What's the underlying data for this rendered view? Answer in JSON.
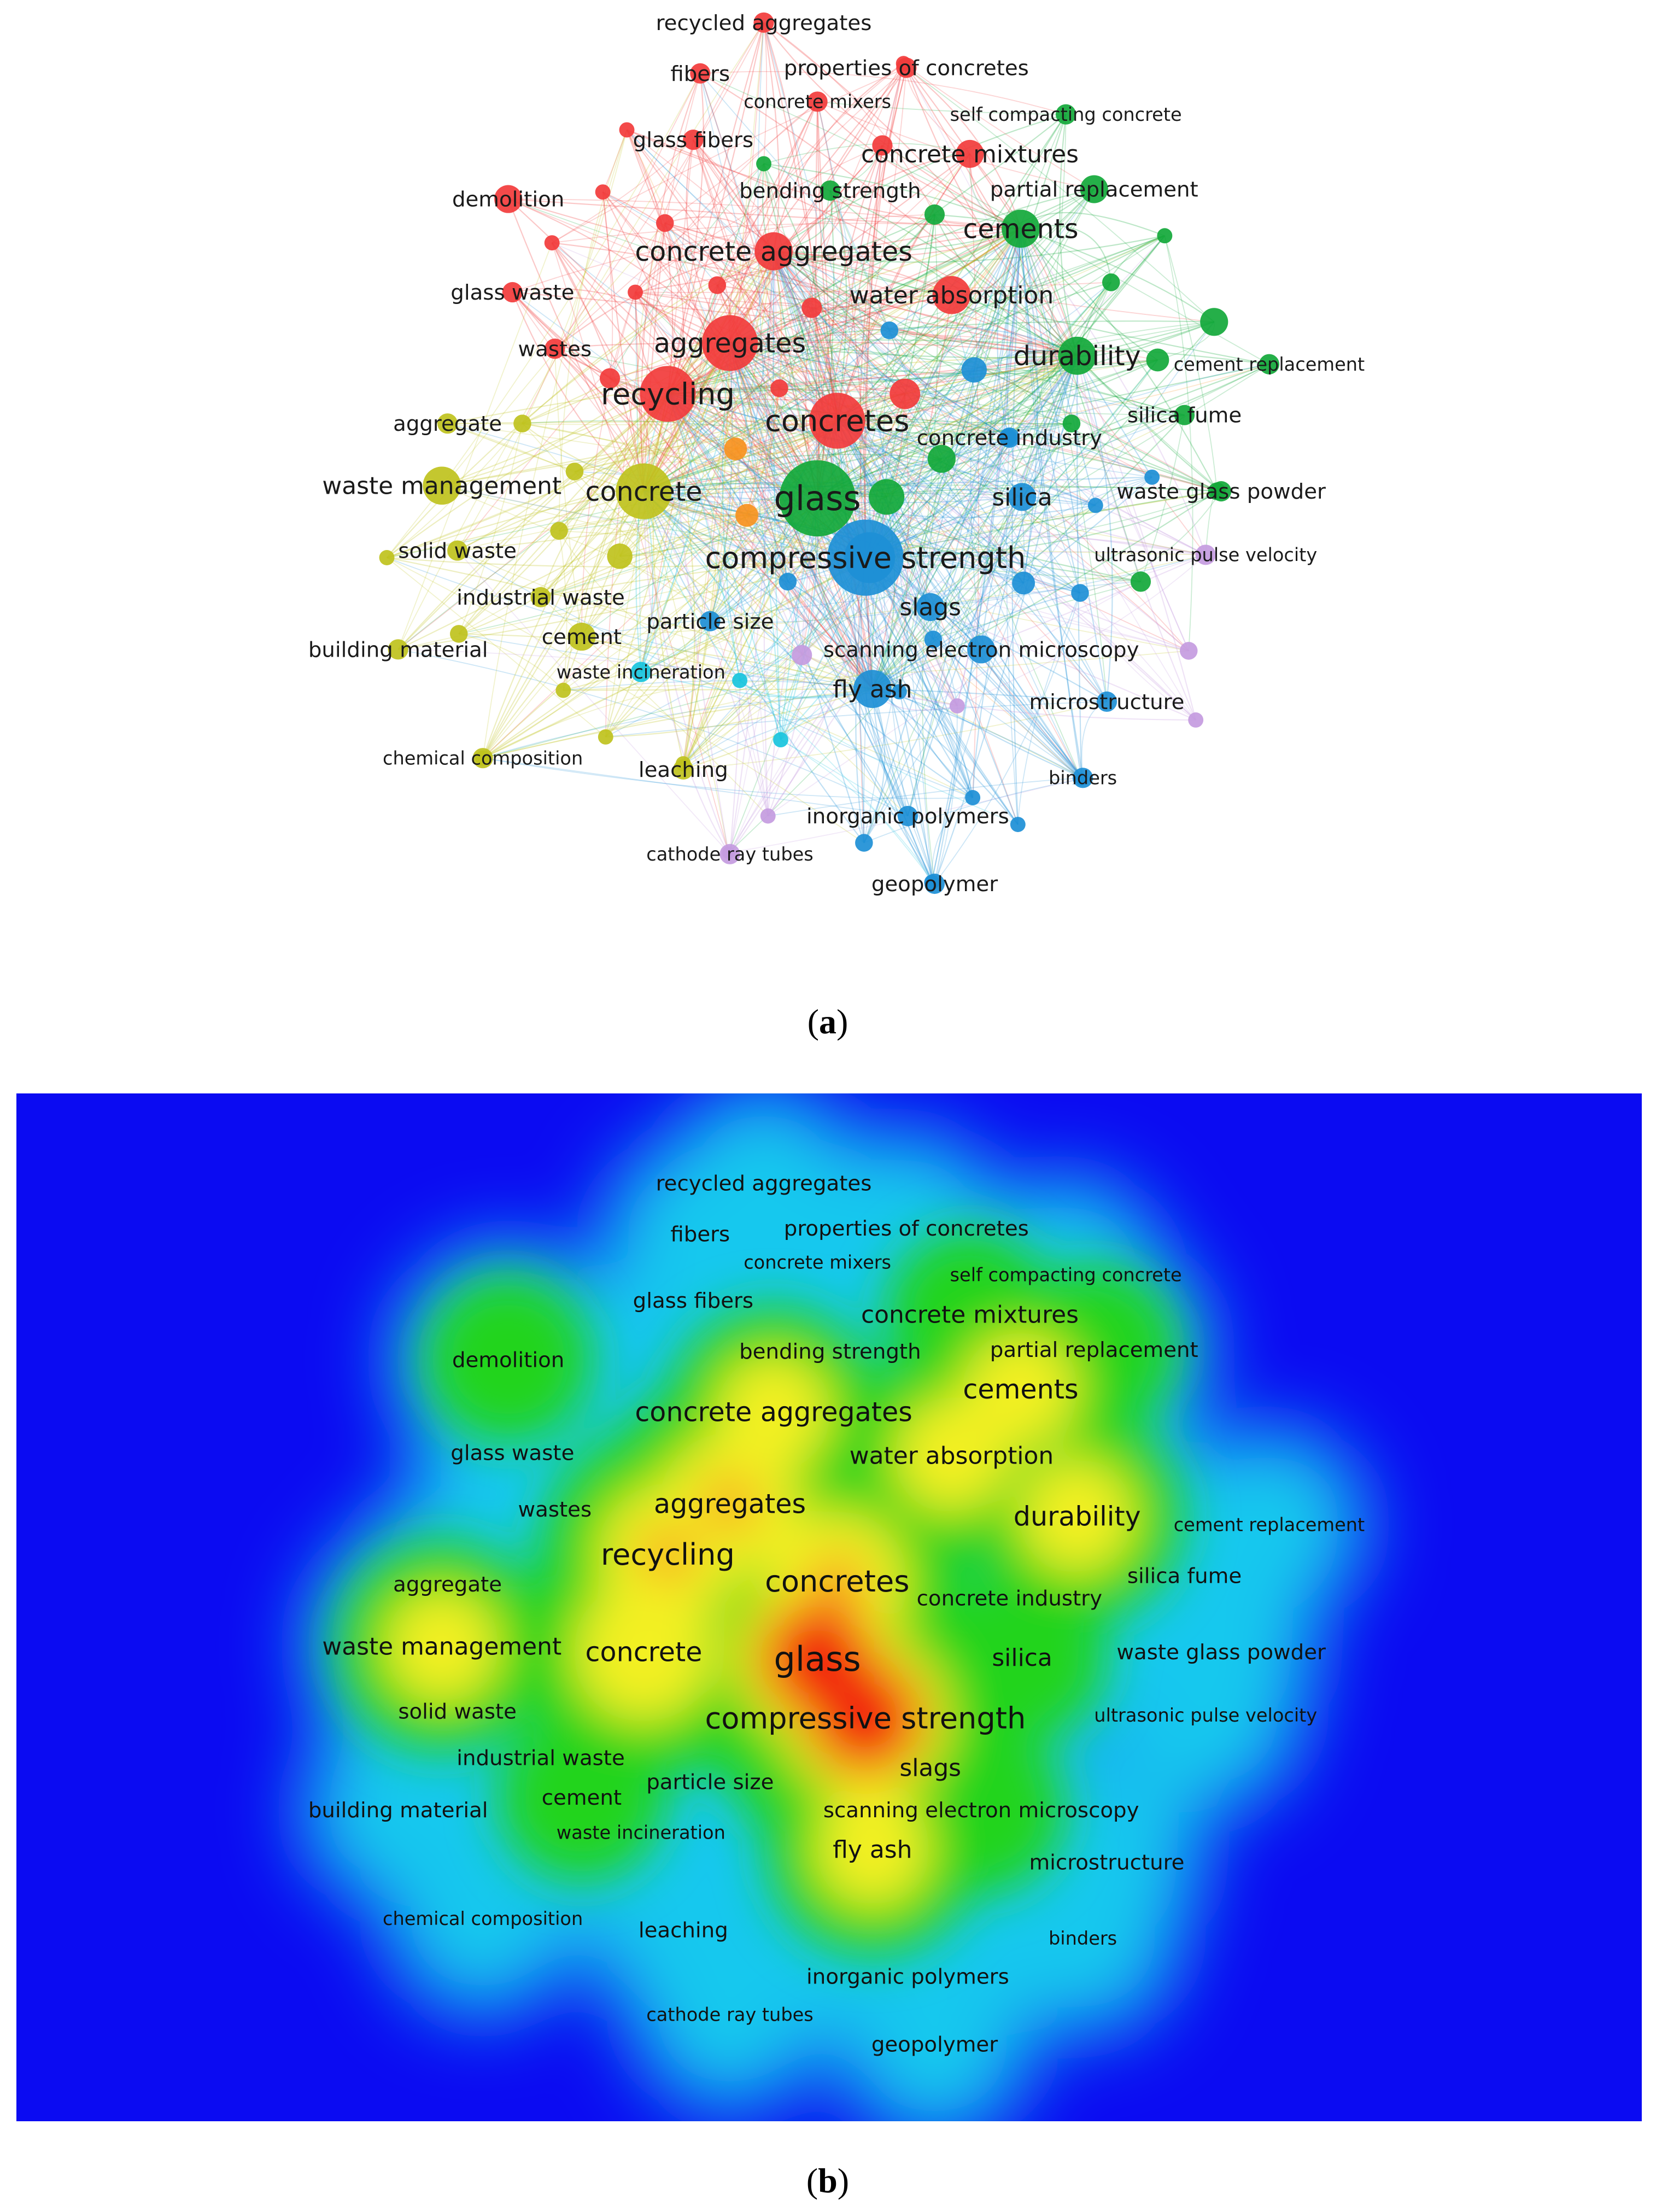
{
  "panel_a": {
    "caption_open": "(",
    "caption_letter": "a",
    "caption_close": ")"
  },
  "panel_b": {
    "caption_open": "(",
    "caption_letter": "b",
    "caption_close": ")"
  },
  "cluster_colors": {
    "red": "#f23b3b",
    "green": "#12a83a",
    "yellow": "#bfc21d",
    "blue": "#1d8fd6",
    "purple": "#c49be0",
    "cyan": "#18c4dd",
    "orange": "#f7931e"
  },
  "density_colors": {
    "background": "#0b0bf2",
    "low": "#18c8ee",
    "mid": "#22d41f",
    "high": "#f3f024",
    "peak": "#f21a0a"
  },
  "keywords": [
    {
      "id": "recycled-aggregates",
      "label": "recycled aggregates",
      "cluster": "red",
      "weight": 1
    },
    {
      "id": "fibers",
      "label": "fibers",
      "cluster": "red",
      "weight": 1
    },
    {
      "id": "properties-of-concretes",
      "label": "properties of concretes",
      "cluster": "red",
      "weight": 1
    },
    {
      "id": "concrete-mixers",
      "label": "concrete mixers",
      "cluster": "red",
      "weight": 1
    },
    {
      "id": "self-compacting-concrete",
      "label": "self compacting concrete",
      "cluster": "green",
      "weight": 1
    },
    {
      "id": "glass-fibers",
      "label": "glass fibers",
      "cluster": "red",
      "weight": 1
    },
    {
      "id": "concrete-mixtures",
      "label": "concrete mixtures",
      "cluster": "red",
      "weight": 2
    },
    {
      "id": "bending-strength",
      "label": "bending strength",
      "cluster": "green",
      "weight": 1
    },
    {
      "id": "partial-replacement",
      "label": "partial replacement",
      "cluster": "green",
      "weight": 2
    },
    {
      "id": "demolition",
      "label": "demolition",
      "cluster": "red",
      "weight": 2
    },
    {
      "id": "cements",
      "label": "cements",
      "cluster": "green",
      "weight": 3
    },
    {
      "id": "concrete-aggregates",
      "label": "concrete aggregates",
      "cluster": "red",
      "weight": 3
    },
    {
      "id": "glass-waste",
      "label": "glass waste",
      "cluster": "red",
      "weight": 1
    },
    {
      "id": "water-absorption",
      "label": "water absorption",
      "cluster": "red",
      "weight": 3
    },
    {
      "id": "wastes",
      "label": "wastes",
      "cluster": "red",
      "weight": 1
    },
    {
      "id": "aggregates",
      "label": "aggregates",
      "cluster": "red",
      "weight": 4
    },
    {
      "id": "durability",
      "label": "durability",
      "cluster": "green",
      "weight": 3
    },
    {
      "id": "cement-replacement",
      "label": "cement replacement",
      "cluster": "green",
      "weight": 1
    },
    {
      "id": "recycling",
      "label": "recycling",
      "cluster": "red",
      "weight": 4
    },
    {
      "id": "aggregate",
      "label": "aggregate",
      "cluster": "yellow",
      "weight": 1
    },
    {
      "id": "concretes",
      "label": "concretes",
      "cluster": "red",
      "weight": 4
    },
    {
      "id": "silica-fume",
      "label": "silica fume",
      "cluster": "green",
      "weight": 1
    },
    {
      "id": "concrete-industry",
      "label": "concrete industry",
      "cluster": "blue",
      "weight": 1
    },
    {
      "id": "waste-management",
      "label": "waste management",
      "cluster": "yellow",
      "weight": 3
    },
    {
      "id": "concrete",
      "label": "concrete",
      "cluster": "yellow",
      "weight": 4
    },
    {
      "id": "glass",
      "label": "glass",
      "cluster": "green",
      "weight": 5
    },
    {
      "id": "silica",
      "label": "silica",
      "cluster": "blue",
      "weight": 2
    },
    {
      "id": "waste-glass-powder",
      "label": "waste glass powder",
      "cluster": "green",
      "weight": 1
    },
    {
      "id": "solid-waste",
      "label": "solid waste",
      "cluster": "yellow",
      "weight": 1
    },
    {
      "id": "compressive-strength",
      "label": "compressive strength",
      "cluster": "blue",
      "weight": 5
    },
    {
      "id": "ultrasonic-pulse-velocity",
      "label": "ultrasonic pulse velocity",
      "cluster": "purple",
      "weight": 1
    },
    {
      "id": "industrial-waste",
      "label": "industrial waste",
      "cluster": "yellow",
      "weight": 1
    },
    {
      "id": "slags",
      "label": "slags",
      "cluster": "blue",
      "weight": 2
    },
    {
      "id": "particle-size",
      "label": "particle size",
      "cluster": "blue",
      "weight": 1
    },
    {
      "id": "cement",
      "label": "cement",
      "cluster": "yellow",
      "weight": 2
    },
    {
      "id": "building-material",
      "label": "building material",
      "cluster": "yellow",
      "weight": 1
    },
    {
      "id": "scanning-electron-microscopy",
      "label": "scanning electron microscopy",
      "cluster": "blue",
      "weight": 2
    },
    {
      "id": "waste-incineration",
      "label": "waste incineration",
      "cluster": "cyan",
      "weight": 1
    },
    {
      "id": "fly-ash",
      "label": "fly ash",
      "cluster": "blue",
      "weight": 3
    },
    {
      "id": "microstructure",
      "label": "microstructure",
      "cluster": "blue",
      "weight": 1
    },
    {
      "id": "chemical-composition",
      "label": "chemical composition",
      "cluster": "yellow",
      "weight": 1
    },
    {
      "id": "leaching",
      "label": "leaching",
      "cluster": "yellow",
      "weight": 1
    },
    {
      "id": "binders",
      "label": "binders",
      "cluster": "blue",
      "weight": 1
    },
    {
      "id": "inorganic-polymers",
      "label": "inorganic polymers",
      "cluster": "blue",
      "weight": 1
    },
    {
      "id": "cathode-ray-tubes",
      "label": "cathode ray tubes",
      "cluster": "purple",
      "weight": 1
    },
    {
      "id": "geopolymer",
      "label": "geopolymer",
      "cluster": "blue",
      "weight": 1
    }
  ]
}
